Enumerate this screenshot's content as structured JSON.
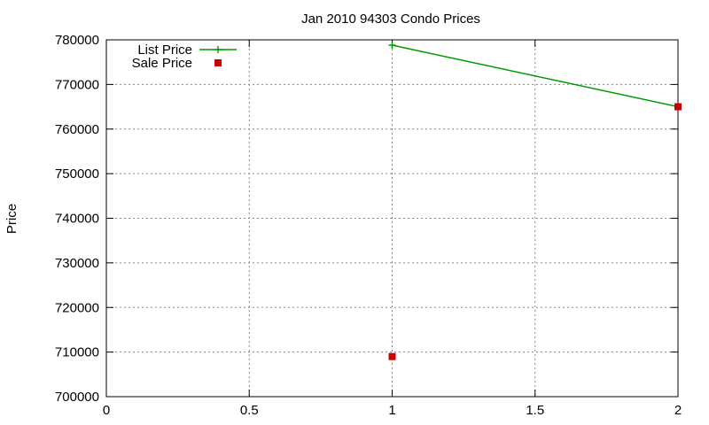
{
  "chart_data": {
    "type": "line",
    "title": "Jan 2010 94303 Condo Prices",
    "xlabel": "",
    "ylabel": "Price",
    "xlim": [
      0,
      2
    ],
    "ylim": [
      700000,
      780000
    ],
    "xticks": [
      0,
      0.5,
      1,
      1.5,
      2
    ],
    "xtick_labels": [
      "0",
      "0.5",
      "1",
      "1.5",
      "2"
    ],
    "yticks": [
      700000,
      710000,
      720000,
      730000,
      740000,
      750000,
      760000,
      770000,
      780000
    ],
    "ytick_labels": [
      "700000",
      "710000",
      "720000",
      "730000",
      "740000",
      "750000",
      "760000",
      "770000",
      "780000"
    ],
    "grid": true,
    "legend_position": "top-left",
    "series": [
      {
        "name": "List Price",
        "style": "linespoints",
        "marker": "plus",
        "color": "#009900",
        "points": [
          {
            "x": 1,
            "y": 778800
          },
          {
            "x": 2,
            "y": 765000
          }
        ]
      },
      {
        "name": "Sale Price",
        "style": "points",
        "marker": "square",
        "color": "#cc0000",
        "points": [
          {
            "x": 1,
            "y": 709000
          },
          {
            "x": 2,
            "y": 765000
          }
        ]
      }
    ]
  }
}
